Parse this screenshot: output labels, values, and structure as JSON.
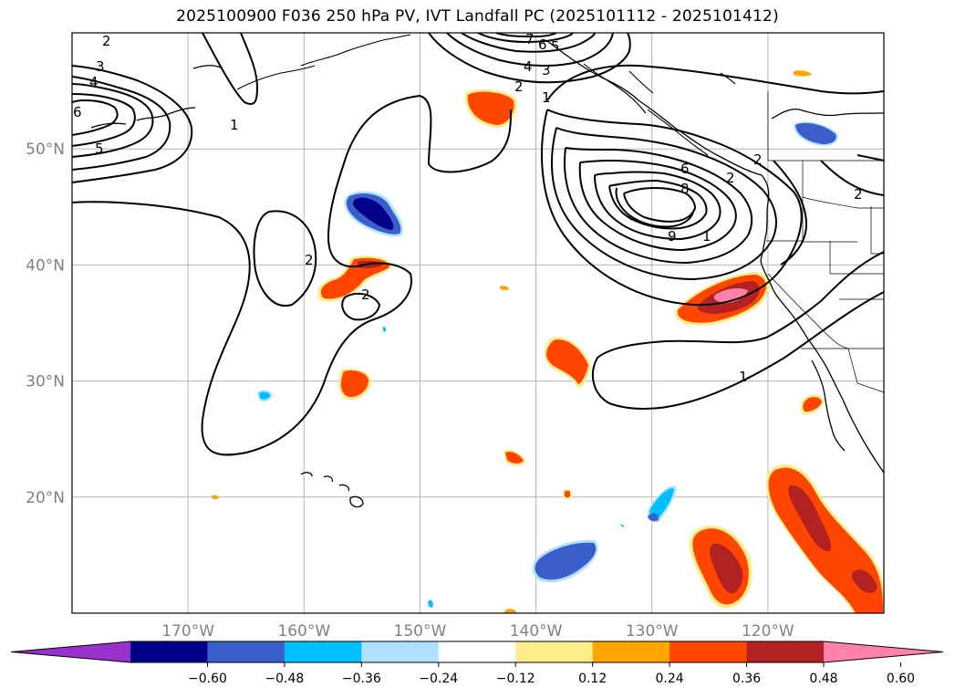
{
  "title": "2025100900 F036 250 hPa PV, IVT Landfall PC (2025101112 - 2025101412)",
  "map": {
    "lon_range": [
      -180,
      -110
    ],
    "lat_range": [
      10,
      60
    ],
    "lat_labels": [
      "50°N",
      "40°N",
      "30°N",
      "20°N"
    ],
    "lat_values": [
      50,
      40,
      30,
      20
    ],
    "lon_labels": [
      "170°W",
      "160°W",
      "150°W",
      "140°W",
      "130°W",
      "120°W"
    ],
    "lon_values": [
      -170,
      -160,
      -150,
      -140,
      -130,
      -120
    ],
    "grid": true,
    "pv_contour_labels": [
      "2",
      "3",
      "4",
      "6",
      "5",
      "1",
      "2",
      "2",
      "7",
      "6",
      "5",
      "4",
      "3",
      "2",
      "1",
      "6",
      "8",
      "9",
      "1",
      "2",
      "2",
      "1",
      "2"
    ]
  },
  "colorbar": {
    "ticks": [
      "−0.60",
      "−0.48",
      "−0.36",
      "−0.24",
      "−0.12",
      "0.12",
      "0.24",
      "0.36",
      "0.48",
      "0.60"
    ],
    "colors": [
      "#9932cc",
      "#00008b",
      "#3a5fcd",
      "#00bfff",
      "#b0e2ff",
      "#ffffff",
      "#ffec8b",
      "#ffa500",
      "#ff4500",
      "#b22222",
      "#ff82ab"
    ],
    "extend": "both"
  }
}
